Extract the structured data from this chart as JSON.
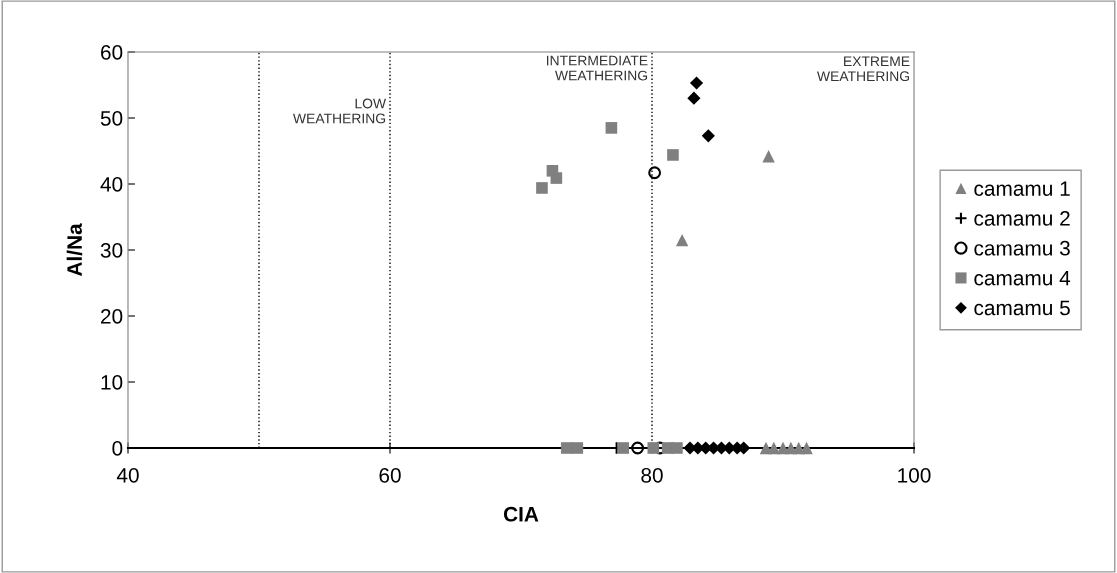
{
  "chart_data": {
    "type": "scatter",
    "xlabel": "CIA",
    "ylabel": "Al/Na",
    "xlim": [
      40,
      100
    ],
    "ylim": [
      0,
      60
    ],
    "xticks": [
      40,
      60,
      80,
      100
    ],
    "yticks": [
      0,
      10,
      20,
      30,
      40,
      50,
      60
    ],
    "grid": false,
    "legend": "right",
    "ref_lines": [
      {
        "axis": "x",
        "value": 50,
        "line_style": "dotted",
        "color": "#000000"
      },
      {
        "axis": "x",
        "value": 60,
        "label": "LOW\nWEATHERING",
        "line_style": "dotted",
        "color": "#000000"
      },
      {
        "axis": "x",
        "value": 80,
        "label": "INTERMEDIATE\nWEATHERING",
        "line_style": "dotted",
        "color": "#000000"
      }
    ],
    "annotations": [
      "EXTREME\nWEATHERING"
    ],
    "series": [
      {
        "name": "camamu 1",
        "color": "#808080",
        "marker": "triangle",
        "x": [
          88.9,
          82.3,
          88.7,
          89.3,
          90.0,
          90.6,
          91.2,
          91.8
        ],
        "values": [
          44.2,
          31.5,
          0,
          0,
          0,
          0,
          0,
          0
        ]
      },
      {
        "name": "camamu 2",
        "color": "#000000",
        "marker": "cross",
        "x": [
          77.3
        ],
        "values": [
          0
        ]
      },
      {
        "name": "camamu 3",
        "color": "#000000",
        "marker": "circle",
        "x": [
          80.2,
          78.9,
          80.6
        ],
        "values": [
          41.7,
          0,
          0
        ]
      },
      {
        "name": "camamu 4",
        "color": "#808080",
        "marker": "square",
        "x": [
          76.9,
          71.6,
          72.4,
          72.7,
          81.6,
          73.5,
          74.3,
          77.8,
          80.1,
          81.2,
          81.9
        ],
        "values": [
          48.5,
          39.4,
          42.0,
          40.9,
          44.4,
          0,
          0,
          0,
          0,
          0,
          0
        ]
      },
      {
        "name": "camamu 5",
        "color": "#000000",
        "marker": "diamond",
        "x": [
          83.4,
          83.2,
          84.3,
          82.9,
          83.5,
          84.1,
          84.7,
          85.3,
          85.9,
          86.5,
          87.0
        ],
        "values": [
          55.3,
          53.0,
          47.3,
          0,
          0,
          0,
          0,
          0,
          0,
          0,
          0
        ]
      }
    ]
  }
}
